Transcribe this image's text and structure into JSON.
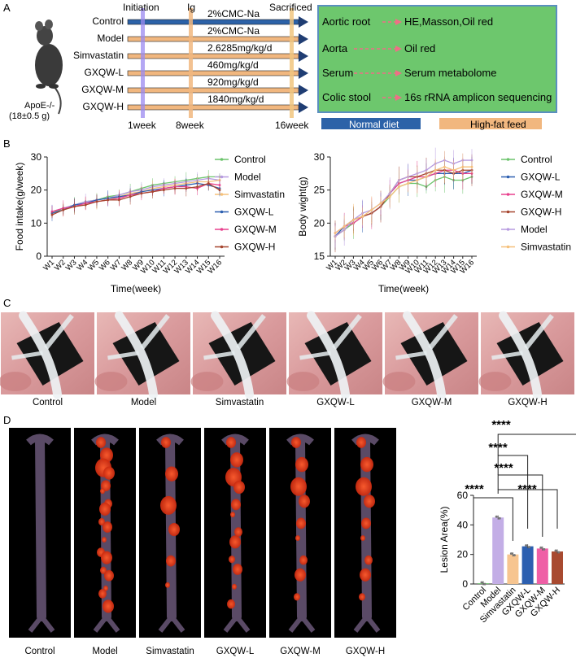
{
  "panel_labels": [
    "A",
    "B",
    "C",
    "D"
  ],
  "panelA": {
    "mouse_label": "ApoE-/-",
    "mouse_weight": "(18±0.5 g)",
    "groups": [
      {
        "name": "Control",
        "dose": "2%CMC-Na",
        "diet": "normal"
      },
      {
        "name": "Model",
        "dose": "2%CMC-Na",
        "diet": "high-fat"
      },
      {
        "name": "Simvastatin",
        "dose": "2.6285mg/kg/d",
        "diet": "high-fat"
      },
      {
        "name": "GXQW-L",
        "dose": "460mg/kg/d",
        "diet": "high-fat"
      },
      {
        "name": "GXQW-M",
        "dose": "920mg/kg/d",
        "diet": "high-fat"
      },
      {
        "name": "GXQW-H",
        "dose": "1840mg/kg/d",
        "diet": "high-fat"
      }
    ],
    "timeline_labels": {
      "initiation": "Initiation",
      "ig": "Ig",
      "sacrificed": "Sacrificed"
    },
    "week_labels": [
      "1week",
      "8week",
      "16week"
    ],
    "analysis": [
      {
        "sample": "Aortic root",
        "method": "HE,Masson,Oil red"
      },
      {
        "sample": "Aorta",
        "method": "Oil red"
      },
      {
        "sample": "Serum",
        "method": "Serum metabolome"
      },
      {
        "sample": "Colic stool",
        "method": "16s rRNA amplicon sequencing"
      }
    ],
    "legend": {
      "normal": "Normal diet",
      "highfat": "High-fat feed"
    },
    "colors": {
      "normal": "#2c62a8",
      "highfat": "#f1b77f",
      "box": "#6dc76d",
      "box_border": "#5a8fbf",
      "arrow": "#ef6f86"
    }
  },
  "chart_data": [
    {
      "type": "line",
      "ylabel": "Food intake(g/week)",
      "xlabel": "Time(week)",
      "ylim": [
        0,
        30
      ],
      "yticks": [
        0,
        10,
        20,
        30
      ],
      "categories": [
        "W1",
        "W2",
        "W3",
        "W4",
        "W5",
        "W6",
        "W7",
        "W8",
        "W9",
        "W10",
        "W11",
        "W12",
        "W13",
        "W14",
        "W15",
        "W16"
      ],
      "legend_position": "right",
      "series": [
        {
          "name": "Control",
          "color": "#6cc46c",
          "values": [
            13,
            14.5,
            15.5,
            16.5,
            17,
            18,
            18.5,
            19.5,
            20.5,
            21.5,
            22,
            22.5,
            23,
            23.5,
            24,
            24
          ]
        },
        {
          "name": "Model",
          "color": "#b79be0",
          "values": [
            13.5,
            14.5,
            15.5,
            16.5,
            17,
            17.5,
            18.5,
            19.5,
            20,
            21,
            21.5,
            22,
            22.5,
            23,
            23.5,
            23
          ]
        },
        {
          "name": "Simvastatin",
          "color": "#f5c07a",
          "values": [
            13,
            14,
            15,
            16,
            16.5,
            17,
            18,
            19,
            19.5,
            20.5,
            21,
            21.5,
            22,
            22.5,
            22.5,
            23
          ]
        },
        {
          "name": "GXQW-L",
          "color": "#2c5fb0",
          "values": [
            13,
            14,
            15.5,
            16,
            17,
            17.5,
            18,
            18.5,
            19.5,
            20,
            20.5,
            21,
            21.5,
            22,
            21.5,
            20.5
          ]
        },
        {
          "name": "GXQW-M",
          "color": "#e8408e",
          "values": [
            13.5,
            14.5,
            15,
            16,
            16.5,
            17,
            17.5,
            18.5,
            19,
            19.5,
            20.5,
            21,
            21,
            20.5,
            22,
            21.5
          ]
        },
        {
          "name": "GXQW-H",
          "color": "#a6462f",
          "values": [
            12.5,
            14,
            15,
            15.5,
            16.5,
            17,
            17,
            18,
            19,
            19.5,
            20,
            20.5,
            20.5,
            21,
            22,
            20
          ]
        }
      ]
    },
    {
      "type": "line",
      "ylabel": "Body wight(g)",
      "xlabel": "Time(week)",
      "ylim": [
        15,
        30
      ],
      "yticks": [
        15,
        20,
        25,
        30
      ],
      "categories": [
        "W1",
        "W2",
        "W3",
        "W4",
        "W5",
        "W6",
        "W7",
        "W8",
        "W9",
        "W10",
        "W11",
        "W12",
        "W13",
        "W14",
        "W15",
        "W16"
      ],
      "legend_position": "right",
      "series": [
        {
          "name": "Control",
          "color": "#6cc46c",
          "values": [
            18,
            19,
            20,
            21,
            21.5,
            22.5,
            24,
            25.5,
            26,
            26,
            25.5,
            26.5,
            27,
            26.5,
            26.5,
            27
          ]
        },
        {
          "name": "GXQW-L",
          "color": "#2c5fb0",
          "values": [
            18,
            19.5,
            20.5,
            21,
            21.5,
            22.5,
            24.5,
            26,
            26.5,
            26.5,
            27,
            27.5,
            27.5,
            27.5,
            27.5,
            28
          ]
        },
        {
          "name": "GXQW-M",
          "color": "#e8408e",
          "values": [
            18.5,
            19.5,
            20,
            21,
            21.5,
            22.5,
            24.5,
            26,
            26.5,
            27,
            27,
            27.5,
            28,
            28,
            27.5,
            27.5
          ]
        },
        {
          "name": "GXQW-H",
          "color": "#a6462f",
          "values": [
            18,
            19,
            20.5,
            21,
            21.5,
            22.5,
            24.5,
            26.5,
            27,
            27,
            27.5,
            28,
            28,
            27.5,
            28,
            28
          ]
        },
        {
          "name": "Model",
          "color": "#b79be0",
          "values": [
            18,
            19,
            20.5,
            21.5,
            22,
            23,
            24.5,
            26.5,
            27,
            27.5,
            28,
            29,
            29.5,
            29,
            29.5,
            29.5
          ]
        },
        {
          "name": "Simvastatin",
          "color": "#f5c07a",
          "values": [
            18.5,
            19.5,
            20.5,
            21,
            22,
            23,
            24,
            25.5,
            26,
            26.5,
            27,
            28,
            28.5,
            28,
            28.5,
            28.5
          ]
        }
      ]
    },
    {
      "type": "bar",
      "ylabel": "Lesion Area(%)",
      "ylim": [
        0,
        60
      ],
      "yticks": [
        0,
        20,
        40,
        60
      ],
      "categories": [
        "Control",
        "Model",
        "Simvastatin",
        "GXQW-L",
        "GXQW-M",
        "GXQW-H"
      ],
      "values": [
        0.5,
        45,
        20,
        25.5,
        24,
        22
      ],
      "colors": [
        "#6cc46c",
        "#c3aee6",
        "#f7c590",
        "#2c5fb0",
        "#ef5fa6",
        "#a84a30"
      ],
      "significance": [
        "****",
        "****",
        "****",
        "****",
        "****"
      ]
    }
  ],
  "panelC": {
    "photos": [
      "Control",
      "Model",
      "Simvastatin",
      "GXQW-L",
      "GXQW-M",
      "GXQW-H"
    ]
  },
  "panelD": {
    "photos": [
      "Control",
      "Model",
      "Simvastatin",
      "GXQW-L",
      "GXQW-M",
      "GXQW-H"
    ]
  }
}
